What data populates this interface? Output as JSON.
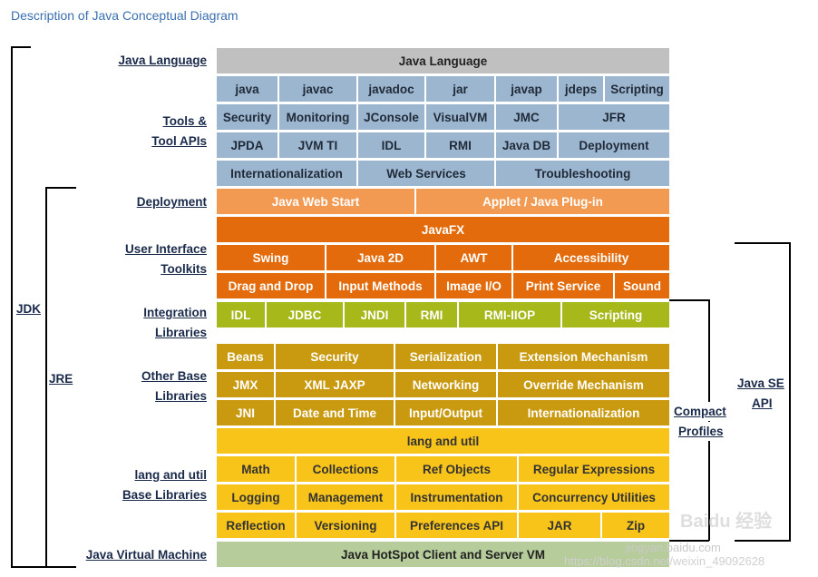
{
  "title": "Description of Java Conceptual Diagram",
  "labels": {
    "java_language": "Java Language",
    "tools_1": "Tools &",
    "tools_2": "Tool APIs",
    "deployment": "Deployment",
    "ui_1": "User Interface",
    "ui_2": "Toolkits",
    "integration_1": "Integration",
    "integration_2": "Libraries",
    "other_1": "Other Base",
    "other_2": "Libraries",
    "langutil_1": "lang and util",
    "langutil_2": "Base Libraries",
    "jvm": "Java Virtual Machine",
    "jdk": "JDK",
    "jre": "JRE",
    "compact_1": "Compact",
    "compact_2": "Profiles",
    "javase_1": "Java SE",
    "javase_2": "API"
  },
  "boxes": {
    "java_language": "Java Language",
    "tools_row1": [
      "java",
      "javac",
      "javadoc",
      "jar",
      "javap",
      "jdeps",
      "Scripting"
    ],
    "tools_row2": [
      "Security",
      "Monitoring",
      "JConsole",
      "VisualVM",
      "JMC",
      "JFR"
    ],
    "tools_row3": [
      "JPDA",
      "JVM TI",
      "IDL",
      "RMI",
      "Java DB",
      "Deployment"
    ],
    "tools_row4": [
      "Internationalization",
      "Web Services",
      "Troubleshooting"
    ],
    "deploy_row": [
      "Java Web Start",
      "Applet / Java Plug-in"
    ],
    "javafx": "JavaFX",
    "ui_row1": [
      "Swing",
      "Java 2D",
      "AWT",
      "Accessibility"
    ],
    "ui_row2": [
      "Drag and Drop",
      "Input Methods",
      "Image I/O",
      "Print Service",
      "Sound"
    ],
    "integration_row": [
      "IDL",
      "JDBC",
      "JNDI",
      "RMI",
      "RMI-IIOP",
      "Scripting"
    ],
    "other_row1": [
      "Beans",
      "Security",
      "Serialization",
      "Extension Mechanism"
    ],
    "other_row2": [
      "JMX",
      "XML JAXP",
      "Networking",
      "Override Mechanism"
    ],
    "other_row3": [
      "JNI",
      "Date and Time",
      "Input/Output",
      "Internationalization"
    ],
    "lang_util": "lang and util",
    "lang_row1": [
      "Math",
      "Collections",
      "Ref Objects",
      "Regular Expressions"
    ],
    "lang_row2": [
      "Logging",
      "Management",
      "Instrumentation",
      "Concurrency Utilities"
    ],
    "lang_row3": [
      "Reflection",
      "Versioning",
      "Preferences API",
      "JAR",
      "Zip"
    ],
    "jvm": "Java HotSpot Client and Server VM"
  },
  "watermark": {
    "url": "https://blog.csdn.net/weixin_49092628",
    "site": "jingyan.baidu.com",
    "logo": "Baidu 经验"
  }
}
